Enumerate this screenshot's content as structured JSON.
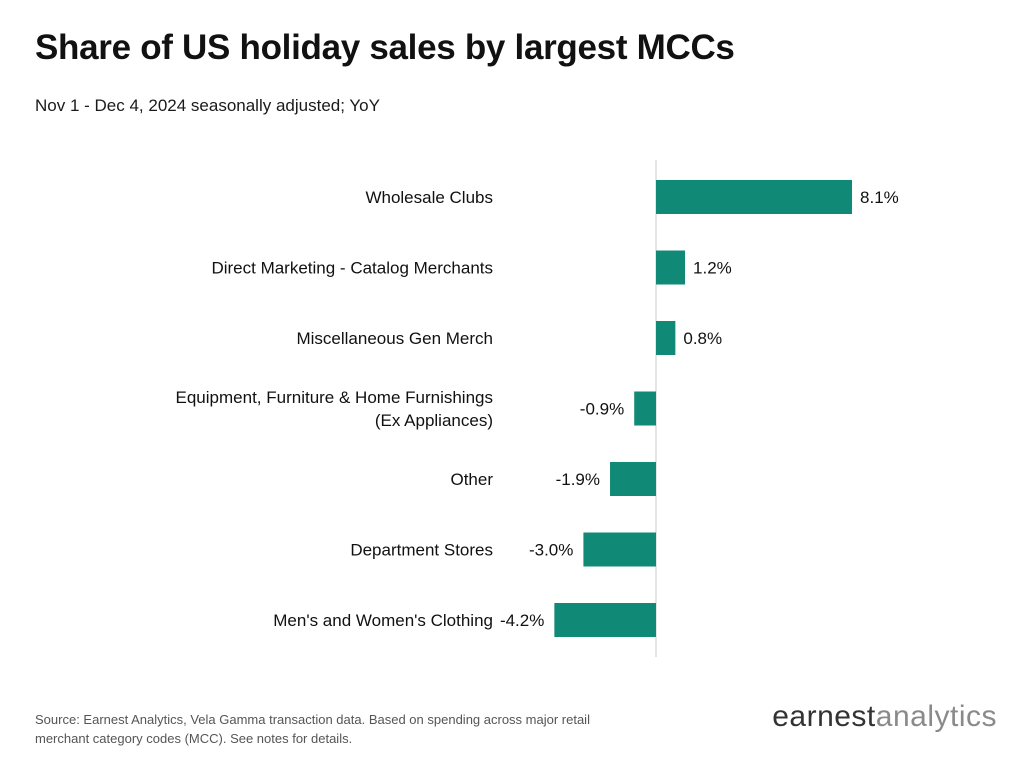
{
  "title": "Share of US holiday sales by largest MCCs",
  "subtitle": "Nov 1 - Dec 4, 2024 seasonally adjusted; YoY",
  "colors": {
    "bar": "#108a76",
    "axis": "#dcdcdc",
    "label": "#111111"
  },
  "chart_data": {
    "type": "bar",
    "orientation": "horizontal",
    "title": "Share of US holiday sales by largest MCCs",
    "subtitle": "Nov 1 - Dec 4, 2024 seasonally adjusted; YoY",
    "xlabel": "",
    "ylabel": "",
    "xlim": [
      -4.5,
      8.5
    ],
    "grid": false,
    "legend": "none",
    "categories": [
      [
        "Wholesale Clubs"
      ],
      [
        "Direct Marketing - Catalog Merchants"
      ],
      [
        "Miscellaneous Gen Merch"
      ],
      [
        "Equipment, Furniture & Home Furnishings",
        "(Ex Appliances)"
      ],
      [
        "Other"
      ],
      [
        "Department Stores"
      ],
      [
        "Men's and Women's Clothing"
      ]
    ],
    "values": [
      8.1,
      1.2,
      0.8,
      -0.9,
      -1.9,
      -3.0,
      -4.2
    ],
    "value_labels": [
      "8.1%",
      "1.2%",
      "0.8%",
      "-0.9%",
      "-1.9%",
      "-3.0%",
      "-4.2%"
    ]
  },
  "source": "Source: Earnest Analytics, Vela Gamma transaction data. Based on spending across major retail merchant category codes (MCC). See notes for details.",
  "logo": {
    "part1": "earnest",
    "part2": "analytics"
  }
}
